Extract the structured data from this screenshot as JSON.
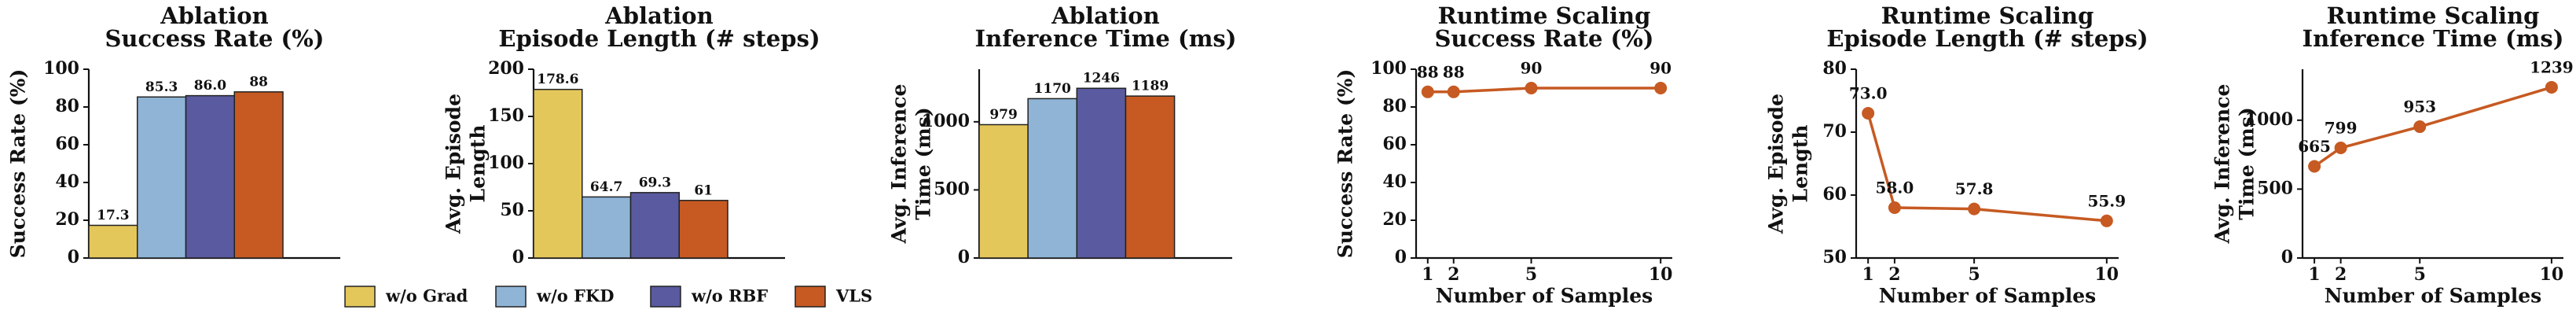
{
  "chart_data": [
    {
      "type": "bar",
      "title": [
        "Ablation",
        "Success Rate (%)"
      ],
      "ylabel": [
        "Success Rate (%)"
      ],
      "values": [
        17.3,
        85.3,
        86.0,
        88
      ],
      "value_labels": [
        "17.3",
        "85.3",
        "86.0",
        "88"
      ],
      "ylim": [
        0,
        100
      ],
      "yticks": [
        0,
        20,
        40,
        60,
        80,
        100
      ]
    },
    {
      "type": "bar",
      "title": [
        "Ablation",
        "Episode Length (# steps)"
      ],
      "ylabel": [
        "Avg. Episode",
        "Length"
      ],
      "values": [
        178.6,
        64.7,
        69.3,
        61
      ],
      "ylim": [
        0,
        200
      ],
      "yticks": [
        0,
        50,
        100,
        150,
        200
      ]
    },
    {
      "type": "bar",
      "title": [
        "Ablation",
        "Inference Time (ms)"
      ],
      "ylabel": [
        "Avg. Inference",
        "Time (ms)"
      ],
      "values": [
        979,
        1170,
        1246,
        1189
      ],
      "ylim": [
        0,
        1386
      ],
      "yticks": [
        0,
        500,
        1000
      ]
    },
    {
      "type": "line",
      "title": [
        "Runtime Scaling",
        "Success Rate (%)"
      ],
      "ylabel": [
        "Success Rate (%)"
      ],
      "xlabel": "Number of Samples",
      "x": [
        1,
        2,
        5,
        10
      ],
      "values": [
        88,
        88,
        90,
        90
      ],
      "color": "#c65a22",
      "xlim": [
        0.55,
        10.45
      ],
      "xticks": [
        1,
        2,
        5,
        10
      ],
      "ylim": [
        0,
        100
      ],
      "yticks": [
        0,
        20,
        40,
        60,
        80,
        100
      ]
    },
    {
      "type": "line",
      "title": [
        "Runtime Scaling",
        "Episode Length (# steps)"
      ],
      "ylabel": [
        "Avg. Episode",
        "Length"
      ],
      "xlabel": "Number of Samples",
      "x": [
        1,
        2,
        5,
        10
      ],
      "values": [
        73.0,
        58.0,
        57.8,
        55.9
      ],
      "value_labels": [
        "73.0",
        "58.0",
        "57.8",
        "55.9"
      ],
      "color": "#c65a22",
      "xlim": [
        0.55,
        10.45
      ],
      "xticks": [
        1,
        2,
        5,
        10
      ],
      "ylim": [
        50,
        80
      ],
      "yticks": [
        50,
        60,
        70,
        80
      ]
    },
    {
      "type": "line",
      "title": [
        "Runtime Scaling",
        "Inference Time (ms)"
      ],
      "ylabel": [
        "Avg. Inference",
        "Time (ms)"
      ],
      "xlabel": "Number of Samples",
      "x": [
        1,
        2,
        5,
        10
      ],
      "values": [
        665,
        799,
        953,
        1239
      ],
      "color": "#c65a22",
      "xlim": [
        0.55,
        10.45
      ],
      "xticks": [
        1,
        2,
        5,
        10
      ],
      "ylim": [
        0,
        1370
      ],
      "yticks": [
        0,
        500,
        1000
      ]
    }
  ],
  "legend": {
    "names": [
      "w/o Grad",
      "w/o FKD",
      "w/o RBF",
      "VLS"
    ],
    "colors": [
      "#e3c75a",
      "#8fb4d6",
      "#5a5aa0",
      "#c65a22"
    ]
  }
}
